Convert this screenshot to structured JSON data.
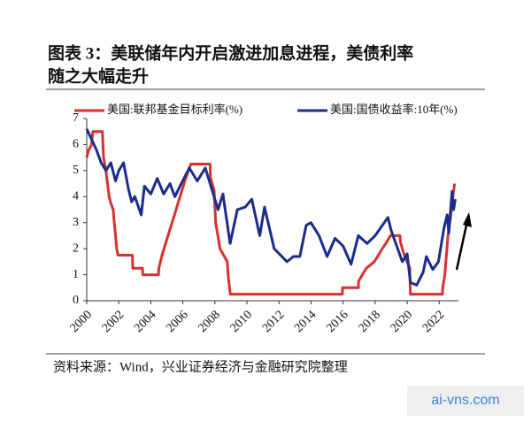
{
  "chart_data": {
    "type": "line",
    "title": [
      "图表 3：美联储年内开启激进加息进程，美债利率",
      "随之大幅走升"
    ],
    "source": "资料来源：Wind，兴业证券经济与金融研究院整理",
    "watermark": "ai-vns.com",
    "xlim": [
      2000,
      2023.2
    ],
    "xticks": [
      2000,
      2002,
      2004,
      2006,
      2008,
      2010,
      2012,
      2014,
      2016,
      2018,
      2020,
      2022
    ],
    "ylim": [
      0,
      7
    ],
    "yticks": [
      0,
      1,
      2,
      3,
      4,
      5,
      6,
      7
    ],
    "legend": "top",
    "series": [
      {
        "name": "美国:联邦基金目标利率(%)",
        "color": "#d8322f",
        "x": [
          2000.0,
          2000.1,
          2000.3,
          2000.38,
          2000.98,
          2001.05,
          2001.2,
          2001.3,
          2001.4,
          2001.5,
          2001.65,
          2001.72,
          2001.8,
          2001.87,
          2001.95,
          2002.85,
          2002.87,
          2003.48,
          2003.5,
          2004.48,
          2004.5,
          2004.7,
          2004.95,
          2005.2,
          2005.45,
          2005.7,
          2005.95,
          2006.2,
          2006.5,
          2007.7,
          2007.72,
          2007.83,
          2007.95,
          2008.05,
          2008.25,
          2008.32,
          2008.78,
          2008.82,
          2008.96,
          2015.95,
          2015.97,
          2016.95,
          2016.97,
          2017.2,
          2017.45,
          2017.95,
          2018.2,
          2018.45,
          2018.72,
          2018.96,
          2019.55,
          2019.58,
          2019.7,
          2019.82,
          2020.17,
          2020.2,
          2022.2,
          2022.22,
          2022.35,
          2022.45,
          2022.55,
          2022.72,
          2022.85,
          2022.96
        ],
        "values": [
          5.5,
          5.75,
          6.0,
          6.5,
          6.5,
          5.5,
          5.0,
          4.5,
          4.0,
          3.75,
          3.5,
          3.0,
          2.5,
          2.0,
          1.75,
          1.75,
          1.25,
          1.25,
          1.0,
          1.0,
          1.25,
          1.75,
          2.25,
          2.75,
          3.25,
          3.75,
          4.25,
          4.75,
          5.25,
          5.25,
          4.75,
          4.5,
          4.25,
          3.0,
          2.25,
          2.0,
          1.5,
          1.0,
          0.25,
          0.25,
          0.5,
          0.5,
          0.75,
          1.0,
          1.25,
          1.5,
          1.75,
          2.0,
          2.25,
          2.5,
          2.5,
          2.25,
          2.0,
          1.75,
          1.25,
          0.25,
          0.25,
          0.5,
          1.0,
          1.75,
          2.5,
          3.25,
          4.0,
          4.5
        ]
      },
      {
        "name": "美国:国债收益率:10年(%)",
        "color": "#1b2c8a",
        "x": [
          2000.0,
          2000.3,
          2000.6,
          2000.9,
          2001.2,
          2001.5,
          2001.8,
          2002.0,
          2002.3,
          2002.6,
          2002.8,
          2003.0,
          2003.4,
          2003.6,
          2004.0,
          2004.4,
          2004.8,
          2005.2,
          2005.5,
          2005.9,
          2006.4,
          2006.9,
          2007.4,
          2007.9,
          2008.2,
          2008.5,
          2008.95,
          2009.4,
          2009.9,
          2010.3,
          2010.8,
          2011.1,
          2011.7,
          2012.5,
          2012.9,
          2013.3,
          2013.7,
          2013.99,
          2014.5,
          2015.0,
          2015.5,
          2016.0,
          2016.5,
          2016.95,
          2017.5,
          2018.0,
          2018.8,
          2019.0,
          2019.7,
          2020.0,
          2020.2,
          2020.6,
          2021.0,
          2021.2,
          2021.6,
          2021.95,
          2022.3,
          2022.5,
          2022.6,
          2022.8,
          2022.9,
          2023.0
        ],
        "values": [
          6.6,
          6.2,
          5.8,
          5.3,
          5.0,
          5.3,
          4.6,
          5.0,
          5.3,
          4.3,
          3.8,
          4.0,
          3.3,
          4.4,
          4.1,
          4.7,
          4.1,
          4.5,
          4.0,
          4.5,
          5.1,
          4.6,
          5.1,
          4.1,
          3.5,
          4.1,
          2.2,
          3.5,
          3.6,
          3.9,
          2.5,
          3.6,
          2.0,
          1.5,
          1.7,
          1.7,
          2.9,
          3.0,
          2.5,
          1.7,
          2.4,
          2.1,
          1.4,
          2.5,
          2.2,
          2.5,
          3.2,
          2.7,
          1.5,
          1.8,
          0.7,
          0.6,
          1.1,
          1.7,
          1.2,
          1.5,
          2.8,
          3.3,
          2.6,
          4.2,
          3.5,
          3.9
        ]
      }
    ]
  }
}
